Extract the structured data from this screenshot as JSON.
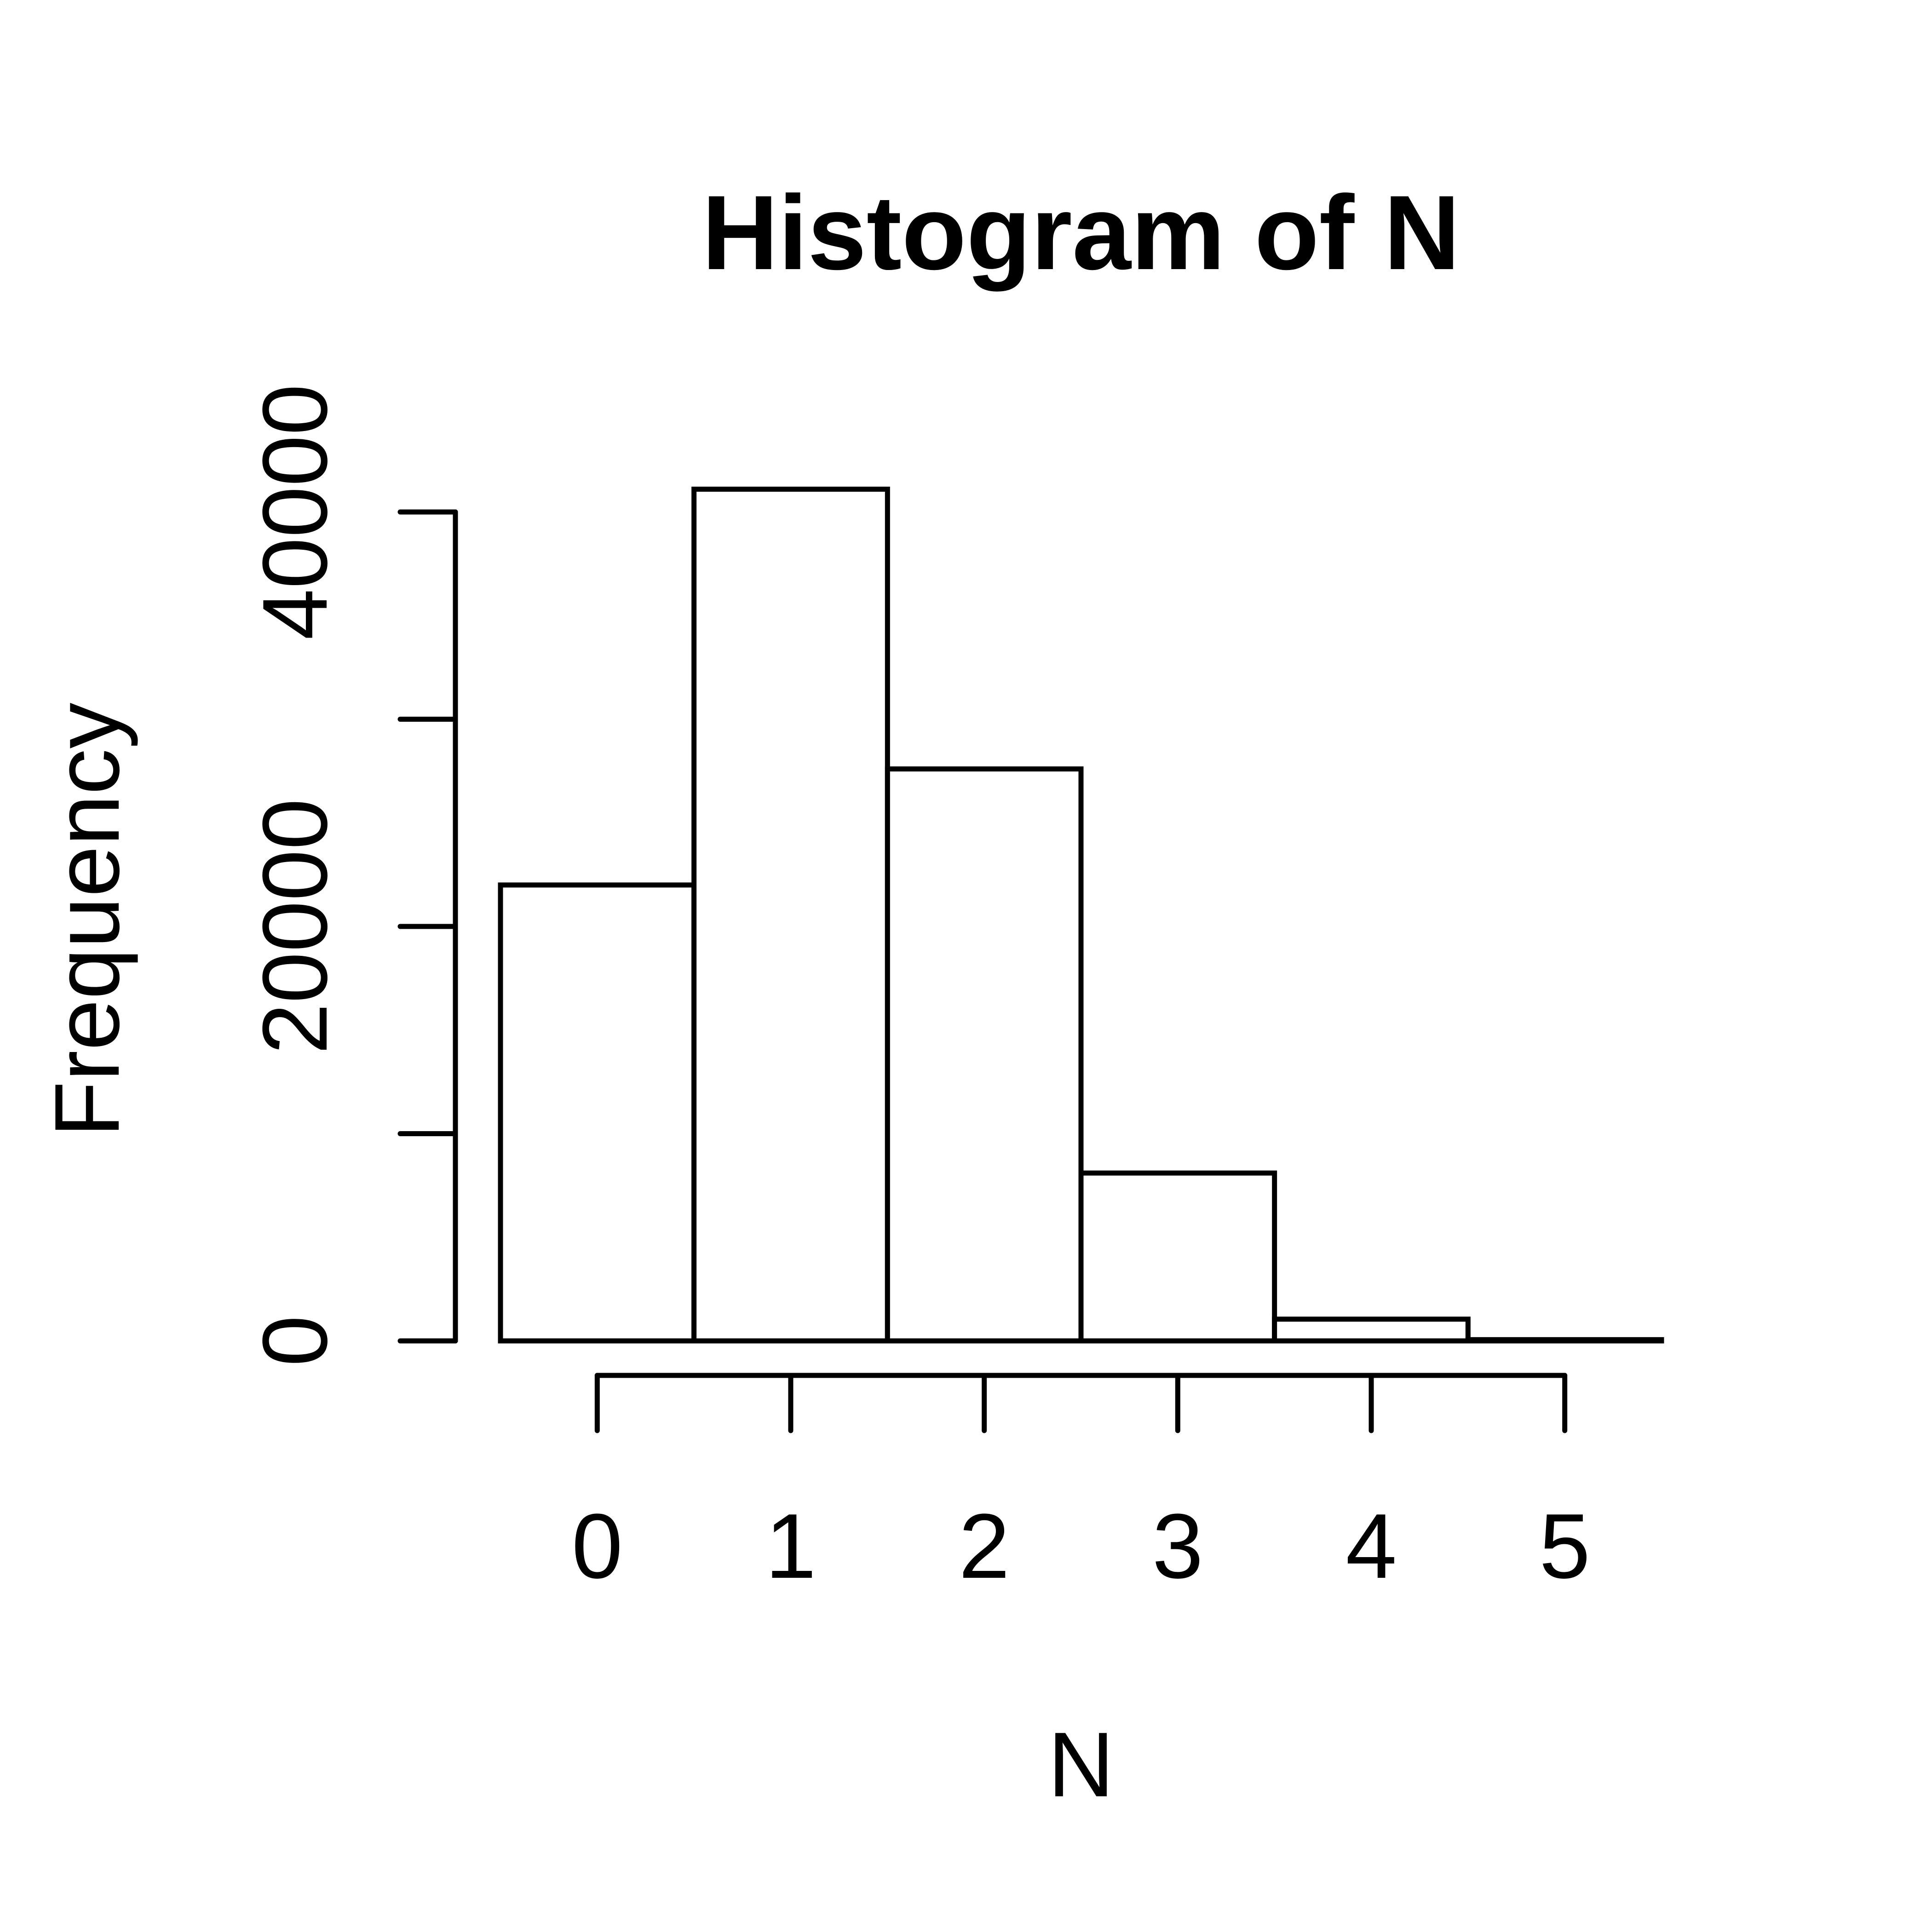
{
  "chart_data": {
    "type": "bar",
    "title": "Histogram of N",
    "xlabel": "N",
    "ylabel": "Frequency",
    "bins": [
      {
        "x0": -0.5,
        "x1": 0.5,
        "count": 22000
      },
      {
        "x0": 0.5,
        "x1": 1.5,
        "count": 41100
      },
      {
        "x0": 1.5,
        "x1": 2.5,
        "count": 27600
      },
      {
        "x0": 2.5,
        "x1": 3.5,
        "count": 8100
      },
      {
        "x0": 3.5,
        "x1": 4.5,
        "count": 1050
      },
      {
        "x0": 4.5,
        "x1": 5.5,
        "count": 60
      }
    ],
    "x_ticks": [
      0,
      1,
      2,
      3,
      4,
      5
    ],
    "x_tick_labels": [
      "0",
      "1",
      "2",
      "3",
      "4",
      "5"
    ],
    "y_ticks": [
      0,
      10000,
      20000,
      30000,
      40000
    ],
    "y_tick_labels": [
      "0",
      "",
      "20000",
      "",
      "40000"
    ],
    "xlim": [
      -0.5,
      5.5
    ],
    "ylim": [
      0,
      40000
    ],
    "grid": false,
    "legend": "none"
  }
}
